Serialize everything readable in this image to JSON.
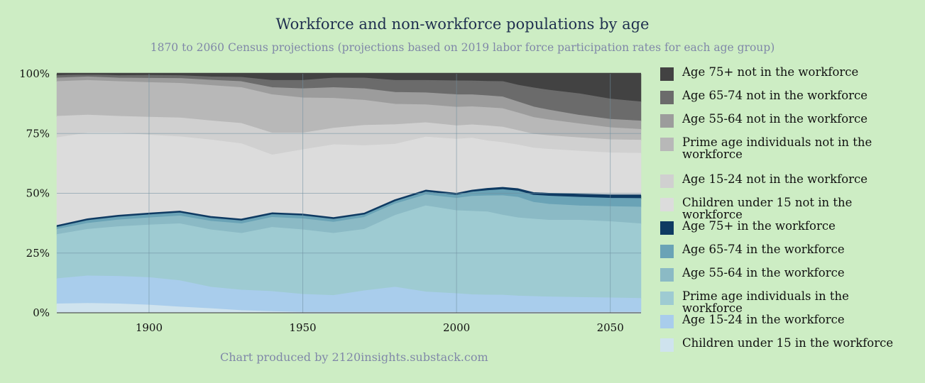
{
  "chart_data": {
    "type": "area",
    "stacked": true,
    "normalized": true,
    "title": "Workforce and non-workforce populations by age",
    "subtitle": "1870 to 2060 Census projections (projections based on 2019 labor force participation rates for each age group)",
    "credit": "Chart produced by 2120insights.substack.com",
    "xlim": [
      1870,
      2060
    ],
    "ylim": [
      0,
      100
    ],
    "x_ticks": [
      1900,
      1950,
      2000,
      2050
    ],
    "x_tick_labels": [
      "1900",
      "1950",
      "2000",
      "2050"
    ],
    "y_ticks": [
      0,
      25,
      50,
      75,
      100
    ],
    "y_tick_labels": [
      "0%",
      "25%",
      "50%",
      "75%",
      "100%"
    ],
    "x": [
      1870,
      1880,
      1890,
      1900,
      1910,
      1920,
      1930,
      1940,
      1950,
      1960,
      1970,
      1980,
      1990,
      2000,
      2005,
      2010,
      2015,
      2020,
      2025,
      2030,
      2040,
      2050,
      2060
    ],
    "series": [
      {
        "name": "Children under 15 in the workforce",
        "color": "#cfe3ee",
        "values": [
          3.5,
          3.7,
          3.5,
          3.0,
          2.2,
          1.5,
          0.7,
          0.3,
          0,
          0,
          0,
          0,
          0,
          0,
          0,
          0,
          0,
          0,
          0,
          0,
          0,
          0,
          0
        ]
      },
      {
        "name": "Age 15-24 in the workforce",
        "color": "#a9cdec",
        "values": [
          10.5,
          11.5,
          11.5,
          11.5,
          11.0,
          9.0,
          8.6,
          8.4,
          7.5,
          7.0,
          9.0,
          10.5,
          8.5,
          7.8,
          7.5,
          7.2,
          7.0,
          6.8,
          6.6,
          6.4,
          6.2,
          6.0,
          5.8
        ]
      },
      {
        "name": "Prime age individuals in the workforce",
        "color": "#9ecbd2",
        "values": [
          18.5,
          19.5,
          20.8,
          22.0,
          23.8,
          24.0,
          23.7,
          26.8,
          27.0,
          26.0,
          25.7,
          30.0,
          36.0,
          34.7,
          35.6,
          34.8,
          32.8,
          32.7,
          32.4,
          32.1,
          32.3,
          31.9,
          31.2
        ]
      },
      {
        "name": "Age 55-64 in the workforce",
        "color": "#8bbac5",
        "values": [
          2.2,
          2.5,
          2.8,
          3.0,
          3.3,
          3.6,
          4.0,
          4.2,
          4.6,
          4.7,
          5.0,
          4.8,
          4.6,
          5.2,
          6.4,
          6.7,
          8.0,
          8.6,
          7.0,
          6.7,
          6.0,
          6.3,
          7.0
        ]
      },
      {
        "name": "Age 65-74 in the workforce",
        "color": "#6aa3b6",
        "values": [
          1.2,
          1.4,
          1.5,
          1.5,
          1.5,
          1.5,
          1.5,
          1.4,
          1.6,
          1.4,
          1.3,
          1.2,
          1.3,
          1.3,
          1.8,
          2.2,
          2.5,
          2.6,
          3.0,
          3.4,
          3.6,
          3.5,
          3.6
        ]
      },
      {
        "name": "Age 75+ in the workforce",
        "color": "#0e3a62",
        "values": [
          0.4,
          0.5,
          0.5,
          0.5,
          0.5,
          0.5,
          0.5,
          0.5,
          0.4,
          0.5,
          0.5,
          0.6,
          0.7,
          0.8,
          0.8,
          0.9,
          0.9,
          1.0,
          1.1,
          1.2,
          1.3,
          1.4,
          1.5
        ]
      },
      {
        "name": "Children under 15 not in the workforce",
        "color": "#dcdcdc",
        "values": [
          36.7,
          35.9,
          34.4,
          32.6,
          31.1,
          32.0,
          31.5,
          24.2,
          26.9,
          30.5,
          28.2,
          23.2,
          22.2,
          22.6,
          22.2,
          19.9,
          18.4,
          18.3,
          18.6,
          18.4,
          18.0,
          17.6,
          17.4
        ]
      },
      {
        "name": "Age 15-24 not in the workforce",
        "color": "#d0d0d0",
        "values": [
          9.0,
          7.5,
          7.0,
          7.5,
          7.9,
          8.0,
          8.5,
          9.2,
          7.0,
          6.9,
          8.5,
          8.2,
          6.0,
          5.6,
          5.7,
          6.3,
          6.3,
          6.0,
          5.8,
          5.7,
          5.6,
          5.5,
          5.5
        ]
      },
      {
        "name": "Prime age individuals not in the workforce",
        "color": "#b8b8b8",
        "values": [
          14.5,
          14.5,
          14.5,
          14.5,
          14.5,
          14.8,
          15.0,
          16.0,
          14.7,
          12.5,
          10.5,
          8.5,
          7.5,
          7.8,
          7.7,
          7.6,
          7.6,
          7.4,
          7.0,
          6.6,
          5.8,
          5.0,
          4.5
        ]
      },
      {
        "name": "Age 55-64 not in the workforce",
        "color": "#9c9c9c",
        "values": [
          1.5,
          1.5,
          1.5,
          1.8,
          2.0,
          2.2,
          2.5,
          3.0,
          3.8,
          4.5,
          4.8,
          5.0,
          5.0,
          5.2,
          5.1,
          5.0,
          4.8,
          4.6,
          4.4,
          4.1,
          3.6,
          3.5,
          3.5
        ]
      },
      {
        "name": "Age 65-74 not in the workforce",
        "color": "#6b6b6b",
        "values": [
          1.0,
          1.0,
          1.0,
          1.2,
          1.2,
          1.4,
          1.8,
          3.0,
          3.5,
          4.0,
          4.5,
          5.0,
          5.2,
          5.8,
          5.9,
          6.0,
          6.3,
          7.0,
          8.0,
          8.3,
          9.0,
          8.5,
          8.0
        ]
      },
      {
        "name": "Age 75+ not in the workforce",
        "color": "#424242",
        "values": [
          1.0,
          0.5,
          1.0,
          0.9,
          1.0,
          1.5,
          1.7,
          3.0,
          3.0,
          2.0,
          2.0,
          3.0,
          3.0,
          3.2,
          3.3,
          3.4,
          3.4,
          5.0,
          6.1,
          7.1,
          8.6,
          10.8,
          12.0
        ]
      }
    ],
    "legend_position": "right",
    "grid": true
  }
}
